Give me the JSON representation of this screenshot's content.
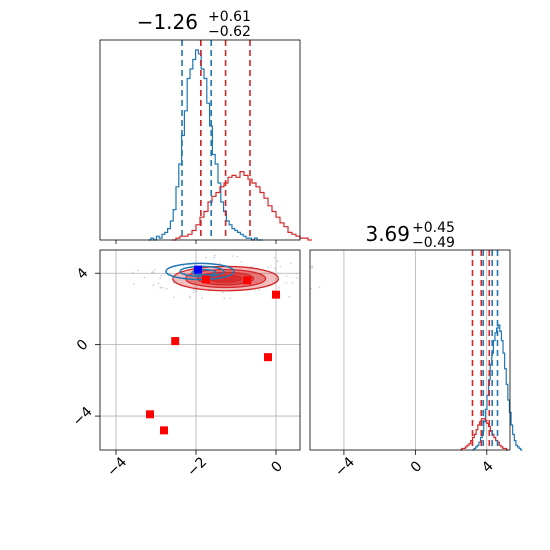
{
  "chart_data": {
    "type": "corner",
    "colors": {
      "blue": "#1f77b4",
      "red": "#d62728",
      "grid": "#b0b0b0"
    },
    "panels": {
      "x_marginal": {
        "title": {
          "median": "−1.26",
          "plus": "+0.61",
          "minus": "−0.62"
        },
        "xlim": [
          -4.4,
          0.6
        ],
        "blue_quantiles": [
          -2.35,
          -1.88,
          -1.62
        ],
        "red_quantiles": [
          -1.88,
          -1.26,
          -0.65
        ],
        "blue_hist": {
          "start": -3.2,
          "bin": 0.07,
          "counts": [
            0,
            1,
            0,
            2,
            1,
            3,
            4,
            6,
            10,
            16,
            28,
            40,
            55,
            68,
            85,
            90,
            95,
            100,
            98,
            90,
            85,
            72,
            60,
            45,
            40,
            30,
            20,
            15,
            10,
            8,
            6,
            5,
            4,
            3,
            2,
            1,
            1,
            0,
            1,
            0,
            0
          ]
        },
        "red_hist": {
          "start": -2.6,
          "bin": 0.1,
          "counts": [
            0,
            1,
            2,
            2,
            3,
            5,
            8,
            12,
            15,
            20,
            23,
            25,
            28,
            30,
            33,
            34,
            33,
            36,
            34,
            32,
            30,
            28,
            25,
            22,
            18,
            15,
            12,
            9,
            7,
            4,
            3,
            2,
            1,
            1,
            0
          ]
        }
      },
      "joint": {
        "xlim": [
          -4.4,
          0.6
        ],
        "ylim": [
          -5.9,
          5.3
        ],
        "xticks": [
          -4,
          -2,
          0
        ],
        "xtick_labels": [
          "−4",
          "−2",
          "0"
        ],
        "yticks": [
          4,
          0,
          -4
        ],
        "ytick_labels": [
          "4",
          "0",
          "−4"
        ],
        "red_contours": [
          {
            "cx": -1.26,
            "cy": 3.7,
            "rx": 1.32,
            "ry": 0.68,
            "alpha": 0.3
          },
          {
            "cx": -1.26,
            "cy": 3.7,
            "rx": 1.0,
            "ry": 0.5,
            "alpha": 0.45
          },
          {
            "cx": -1.26,
            "cy": 3.7,
            "rx": 0.7,
            "ry": 0.35,
            "alpha": 0.6
          },
          {
            "cx": -1.26,
            "cy": 3.7,
            "rx": 0.4,
            "ry": 0.2,
            "alpha": 0.75
          }
        ],
        "blue_contours": [
          {
            "cx": -1.9,
            "cy": 4.1,
            "rx": 0.85,
            "ry": 0.45
          },
          {
            "cx": -1.85,
            "cy": 4.1,
            "rx": 0.55,
            "ry": 0.28
          },
          {
            "cx": -1.8,
            "cy": 4.05,
            "rx": 0.3,
            "ry": 0.15
          }
        ],
        "red_squares": [
          {
            "x": -2.52,
            "y": 0.2
          },
          {
            "x": -0.2,
            "y": -0.7
          },
          {
            "x": -3.15,
            "y": -3.9
          },
          {
            "x": -2.8,
            "y": -4.8
          },
          {
            "x": 0.0,
            "y": 2.8
          },
          {
            "x": -0.72,
            "y": 3.6
          },
          {
            "x": -1.75,
            "y": 3.65
          }
        ],
        "blue_square": {
          "x": -1.95,
          "y": 4.2
        }
      },
      "y_marginal": {
        "title": {
          "median": "3.69",
          "plus": "+0.45",
          "minus": "−0.49"
        },
        "xlim": [
          -5.9,
          5.3
        ],
        "xticks": [
          -4,
          0,
          4
        ],
        "xtick_labels": [
          "−4",
          "0",
          "4"
        ],
        "blue_quantiles": [
          3.8,
          4.3,
          4.6
        ],
        "red_quantiles": [
          3.2,
          3.69,
          4.14
        ],
        "blue_hist": {
          "start": 3.2,
          "bin": 0.09,
          "counts": [
            0,
            1,
            2,
            3,
            5,
            8,
            12,
            18,
            26,
            35,
            45,
            55,
            62,
            70,
            75,
            78,
            80,
            76,
            70,
            62,
            52,
            42,
            32,
            24,
            16,
            10,
            6,
            3,
            2,
            1,
            0
          ]
        },
        "red_hist": {
          "start": 2.5,
          "bin": 0.1,
          "counts": [
            0,
            1,
            1,
            2,
            3,
            4,
            6,
            8,
            10,
            13,
            16,
            18,
            20,
            20,
            19,
            17,
            15,
            12,
            10,
            8,
            6,
            5,
            3,
            2,
            1,
            1,
            0
          ]
        }
      }
    }
  }
}
